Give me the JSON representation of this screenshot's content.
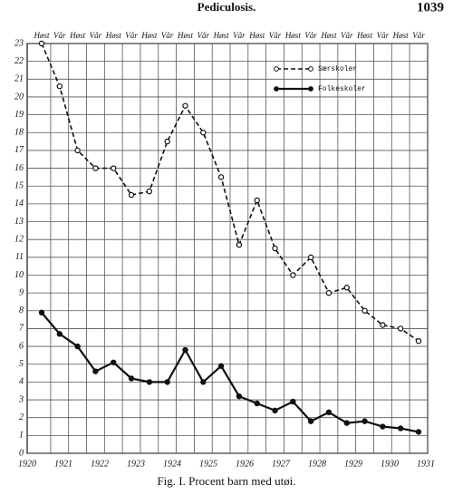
{
  "header": {
    "title": "Pediculosis.",
    "page": "1039"
  },
  "chart_data": {
    "type": "line",
    "caption": "Fig. I.  Procent barn med utøi.",
    "categories": [
      "Høst",
      "Vår",
      "Høst",
      "Vår",
      "Høst",
      "Vår",
      "Høst",
      "Vår",
      "Høst",
      "Vår",
      "Høst",
      "Vår",
      "Høst",
      "Vår",
      "Høst",
      "Vår",
      "Høst",
      "Vår",
      "Høst",
      "Vår",
      "Høst",
      "Vår"
    ],
    "year_labels": [
      "1920",
      "1921",
      "1922",
      "1923",
      "1924",
      "1925",
      "1926",
      "1927",
      "1928",
      "1929",
      "1930",
      "1931"
    ],
    "ylim": [
      0,
      23
    ],
    "yticks": [
      0,
      1,
      2,
      3,
      4,
      5,
      6,
      7,
      8,
      9,
      10,
      11,
      12,
      13,
      14,
      15,
      16,
      17,
      18,
      19,
      20,
      21,
      22,
      23
    ],
    "grid": true,
    "series": [
      {
        "name": "Særskoler",
        "color": "#111111",
        "style": "dashed",
        "marker": "open",
        "values": [
          23,
          20.6,
          17,
          16,
          16,
          14.5,
          14.7,
          17.5,
          19.5,
          18,
          15.5,
          11.7,
          14.2,
          11.5,
          10,
          11,
          9,
          9.3,
          8,
          7.2,
          7,
          6.3
        ]
      },
      {
        "name": "Folkeskoler",
        "color": "#111111",
        "style": "solid",
        "marker": "filled",
        "values": [
          7.9,
          6.7,
          6,
          4.6,
          5.1,
          4.2,
          4,
          4,
          5.8,
          4,
          4.9,
          3.2,
          2.8,
          2.4,
          2.9,
          1.8,
          2.3,
          1.7,
          1.8,
          1.5,
          1.4,
          1.2
        ]
      }
    ]
  }
}
